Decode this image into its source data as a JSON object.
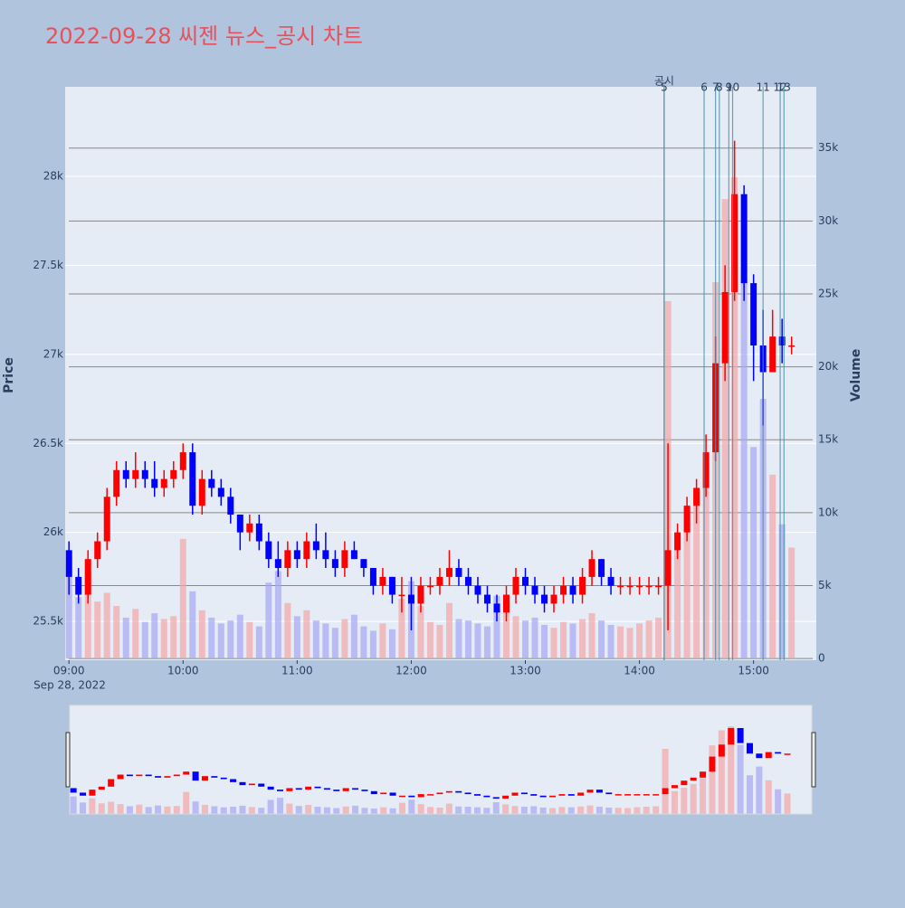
{
  "chart_data": {
    "type": "candlestick",
    "title": "2022-09-28 씨젠 뉴스_공시 차트",
    "y_title": "Price",
    "y2_title": "Volume",
    "x_date_label": "Sep 28, 2022",
    "increasing_color": "#ff0000",
    "decreasing_color": "#0000ff",
    "volume_increasing_color": "#f4a6a6",
    "volume_decreasing_color": "#a6a6f4",
    "event_color": "#4a90a4",
    "xlim": [
      "2022-09-28 08:58",
      "2022-09-28 15:33"
    ],
    "xticks": [
      {
        "value": "2022-09-28 09:00",
        "label": "09:00"
      },
      {
        "value": "2022-09-28 10:00",
        "label": "10:00"
      },
      {
        "value": "2022-09-28 11:00",
        "label": "11:00"
      },
      {
        "value": "2022-09-28 12:00",
        "label": "12:00"
      },
      {
        "value": "2022-09-28 13:00",
        "label": "13:00"
      },
      {
        "value": "2022-09-28 14:00",
        "label": "14:00"
      },
      {
        "value": "2022-09-28 15:00",
        "label": "15:00"
      }
    ],
    "ylim": [
      25282,
      28503
    ],
    "yticks": [
      {
        "value": 25500,
        "label": "25.5k"
      },
      {
        "value": 26000,
        "label": "26k"
      },
      {
        "value": 26500,
        "label": "26.5k"
      },
      {
        "value": 27000,
        "label": "27k"
      },
      {
        "value": 27500,
        "label": "27.5k"
      },
      {
        "value": 28000,
        "label": "28k"
      }
    ],
    "y2lim": [
      -120,
      39200
    ],
    "y2ticks": [
      0,
      {
        "value": 5000,
        "label": "5k"
      },
      {
        "value": 10000,
        "label": "10k"
      },
      {
        "value": 15000,
        "label": "15k"
      },
      {
        "value": 20000,
        "label": "20k"
      },
      {
        "value": 25000,
        "label": "25k"
      },
      {
        "value": 30000,
        "label": "30k"
      },
      {
        "value": 35000,
        "label": "35k"
      }
    ],
    "events": [
      {
        "x": "2022-09-28 14:13",
        "label": "공시"
      },
      {
        "x": "2022-09-28 14:13",
        "label": "5"
      },
      {
        "x": "2022-09-28 14:34",
        "label": "6"
      },
      {
        "x": "2022-09-28 14:40",
        "label": "7"
      },
      {
        "x": "2022-09-28 14:42",
        "label": "8"
      },
      {
        "x": "2022-09-28 14:47",
        "label": "9"
      },
      {
        "x": "2022-09-28 14:49",
        "label": "10"
      },
      {
        "x": "2022-09-28 15:05",
        "label": "11"
      },
      {
        "x": "2022-09-28 15:14",
        "label": "12"
      },
      {
        "x": "2022-09-28 15:16",
        "label": "13"
      }
    ],
    "x": [
      "2022-09-28 09:00",
      "2022-09-28 09:05",
      "2022-09-28 09:10",
      "2022-09-28 09:15",
      "2022-09-28 09:20",
      "2022-09-28 09:25",
      "2022-09-28 09:30",
      "2022-09-28 09:35",
      "2022-09-28 09:40",
      "2022-09-28 09:45",
      "2022-09-28 09:50",
      "2022-09-28 09:55",
      "2022-09-28 10:00",
      "2022-09-28 10:05",
      "2022-09-28 10:10",
      "2022-09-28 10:15",
      "2022-09-28 10:20",
      "2022-09-28 10:25",
      "2022-09-28 10:30",
      "2022-09-28 10:35",
      "2022-09-28 10:40",
      "2022-09-28 10:45",
      "2022-09-28 10:50",
      "2022-09-28 10:55",
      "2022-09-28 11:00",
      "2022-09-28 11:05",
      "2022-09-28 11:10",
      "2022-09-28 11:15",
      "2022-09-28 11:20",
      "2022-09-28 11:25",
      "2022-09-28 11:30",
      "2022-09-28 11:35",
      "2022-09-28 11:40",
      "2022-09-28 11:45",
      "2022-09-28 11:50",
      "2022-09-28 11:55",
      "2022-09-28 12:00",
      "2022-09-28 12:05",
      "2022-09-28 12:10",
      "2022-09-28 12:15",
      "2022-09-28 12:20",
      "2022-09-28 12:25",
      "2022-09-28 12:30",
      "2022-09-28 12:35",
      "2022-09-28 12:40",
      "2022-09-28 12:45",
      "2022-09-28 12:50",
      "2022-09-28 12:55",
      "2022-09-28 13:00",
      "2022-09-28 13:05",
      "2022-09-28 13:10",
      "2022-09-28 13:15",
      "2022-09-28 13:20",
      "2022-09-28 13:25",
      "2022-09-28 13:30",
      "2022-09-28 13:35",
      "2022-09-28 13:40",
      "2022-09-28 13:45",
      "2022-09-28 13:50",
      "2022-09-28 13:55",
      "2022-09-28 14:00",
      "2022-09-28 14:05",
      "2022-09-28 14:10",
      "2022-09-28 14:15",
      "2022-09-28 14:20",
      "2022-09-28 14:25",
      "2022-09-28 14:30",
      "2022-09-28 14:35",
      "2022-09-28 14:40",
      "2022-09-28 14:45",
      "2022-09-28 14:50",
      "2022-09-28 14:55",
      "2022-09-28 15:00",
      "2022-09-28 15:05",
      "2022-09-28 15:10",
      "2022-09-28 15:15",
      "2022-09-28 15:20"
    ],
    "open": [
      25900,
      25750,
      25650,
      25850,
      25950,
      26200,
      26350,
      26300,
      26350,
      26300,
      26250,
      26300,
      26350,
      26450,
      26150,
      26300,
      26250,
      26200,
      26100,
      26000,
      26050,
      25950,
      25850,
      25800,
      25900,
      25850,
      25950,
      25900,
      25850,
      25800,
      25900,
      25850,
      25800,
      25700,
      25750,
      25650,
      25650,
      25600,
      25700,
      25700,
      25750,
      25800,
      25750,
      25700,
      25650,
      25600,
      25550,
      25650,
      25750,
      25700,
      25650,
      25600,
      25650,
      25700,
      25650,
      25750,
      25850,
      25750,
      25700,
      25700,
      25700,
      25700,
      25700,
      25700,
      25900,
      26000,
      26150,
      26250,
      26450,
      26950,
      27350,
      27900,
      27400,
      27050,
      26900,
      27100,
      27050
    ],
    "high": [
      25950,
      25800,
      25900,
      26000,
      26250,
      26400,
      26400,
      26450,
      26400,
      26400,
      26350,
      26400,
      26500,
      26500,
      26350,
      26350,
      26300,
      26250,
      26100,
      26100,
      26100,
      26000,
      25950,
      25950,
      25950,
      26000,
      26050,
      26000,
      25900,
      25950,
      25950,
      25850,
      25800,
      25800,
      25750,
      25750,
      25750,
      25750,
      25750,
      25800,
      25900,
      25850,
      25800,
      25750,
      25700,
      25650,
      25700,
      25800,
      25800,
      25750,
      25700,
      25700,
      25750,
      25750,
      25800,
      25900,
      25850,
      25800,
      25750,
      25750,
      25750,
      25750,
      25750,
      26500,
      26050,
      26200,
      26300,
      26550,
      27100,
      27500,
      28200,
      27950,
      27450,
      27250,
      27250,
      27200,
      27100
    ],
    "low": [
      25650,
      25600,
      25600,
      25800,
      25900,
      26150,
      26250,
      26250,
      26250,
      26200,
      26200,
      26250,
      26300,
      26100,
      26100,
      26200,
      26150,
      26050,
      25900,
      25950,
      25900,
      25800,
      25750,
      25750,
      25800,
      25800,
      25850,
      25800,
      25750,
      25750,
      25850,
      25750,
      25650,
      25650,
      25600,
      25550,
      25450,
      25550,
      25650,
      25650,
      25700,
      25700,
      25650,
      25600,
      25550,
      25500,
      25500,
      25600,
      25650,
      25600,
      25550,
      25550,
      25600,
      25600,
      25600,
      25700,
      25700,
      25650,
      25650,
      25650,
      25650,
      25650,
      25650,
      25450,
      25850,
      25950,
      26050,
      26200,
      26400,
      26850,
      27300,
      27300,
      26850,
      26600,
      26900,
      26950,
      27000
    ],
    "close": [
      25750,
      25650,
      25850,
      25950,
      26200,
      26350,
      26300,
      26350,
      26300,
      26250,
      26300,
      26350,
      26450,
      26150,
      26300,
      26250,
      26200,
      26100,
      26000,
      26050,
      25950,
      25850,
      25800,
      25900,
      25850,
      25950,
      25900,
      25850,
      25800,
      25900,
      25850,
      25800,
      25700,
      25750,
      25650,
      25650,
      25600,
      25700,
      25700,
      25750,
      25800,
      25750,
      25700,
      25650,
      25600,
      25550,
      25650,
      25750,
      25700,
      25650,
      25600,
      25650,
      25700,
      25650,
      25750,
      25850,
      25750,
      25700,
      25700,
      25700,
      25700,
      25700,
      25700,
      25900,
      26000,
      26150,
      26250,
      26450,
      26950,
      27350,
      27900,
      27400,
      27050,
      26900,
      27100,
      27050,
      27050
    ],
    "volume": [
      6500,
      4200,
      5800,
      3900,
      4500,
      3600,
      2800,
      3400,
      2500,
      3100,
      2700,
      2900,
      8200,
      4600,
      3300,
      2800,
      2400,
      2600,
      3000,
      2500,
      2200,
      5200,
      6000,
      3800,
      2900,
      3300,
      2600,
      2400,
      2100,
      2700,
      3000,
      2200,
      1900,
      2400,
      2000,
      4100,
      5300,
      3600,
      2500,
      2300,
      3800,
      2700,
      2600,
      2400,
      2200,
      4300,
      3500,
      2900,
      2600,
      2800,
      2300,
      2100,
      2500,
      2400,
      2700,
      3100,
      2600,
      2300,
      2200,
      2100,
      2400,
      2600,
      2800,
      24500,
      8500,
      9800,
      11200,
      13500,
      25800,
      31500,
      33000,
      26000,
      14500,
      17800,
      12600,
      9200,
      7600
    ]
  }
}
